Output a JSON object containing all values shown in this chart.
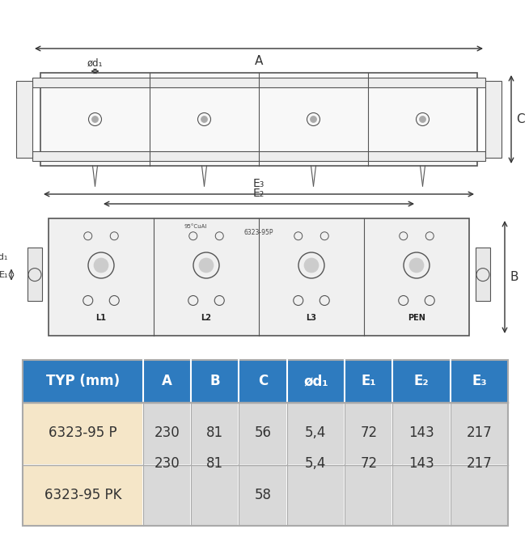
{
  "title": "",
  "bg_color": "#ffffff",
  "header_bg": "#2e7bbf",
  "header_fg": "#ffffff",
  "row1_bg": "#f5e6c8",
  "row2_bg": "#f5e6c8",
  "data_bg": "#d9d9d9",
  "header_labels": [
    "TYP (mm)",
    "A",
    "B",
    "C",
    "ød₁",
    "E₁",
    "E₂",
    "E₃"
  ],
  "row1_label": "6323-95 P",
  "row2_label": "6323-95 PK",
  "row1_C": "56",
  "row2_C": "58",
  "shared_A": "230",
  "shared_B": "81",
  "shared_d": "5,4",
  "shared_E1": "72",
  "shared_E2": "143",
  "shared_E3": "217",
  "top_view_img_placeholder": true,
  "front_view_img_placeholder": true
}
